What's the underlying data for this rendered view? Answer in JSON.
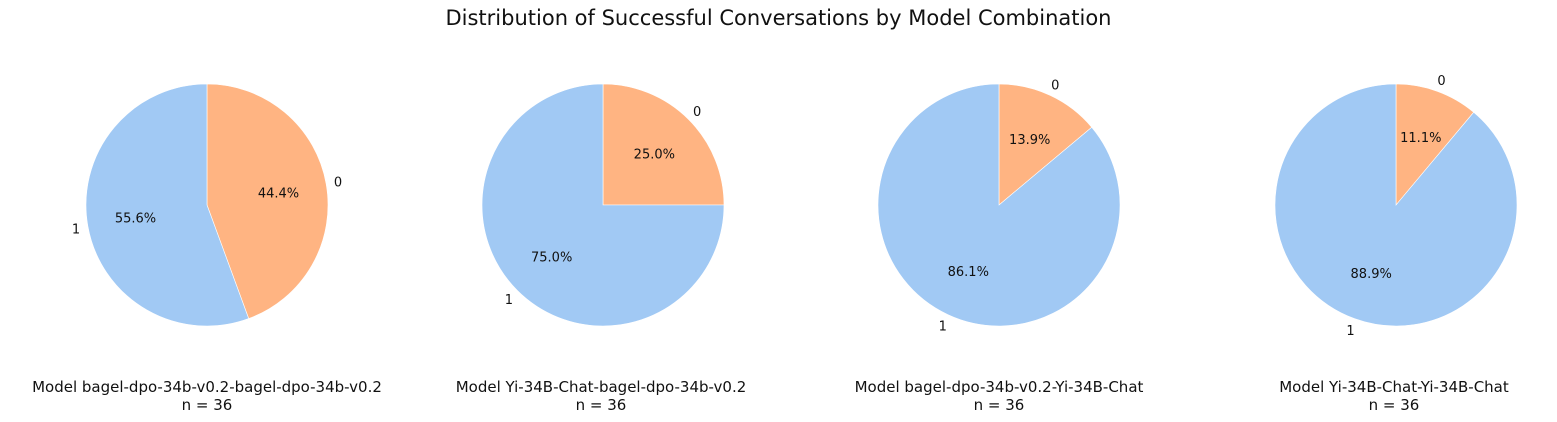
{
  "title": "Distribution of Successful Conversations by Model Combination",
  "colors": {
    "label_1": "#a1c9f4",
    "label_0": "#ffb482"
  },
  "chart_data": [
    {
      "type": "pie",
      "caption": "Model bagel-dpo-34b-v0.2-bagel-dpo-34b-v0.2",
      "n_label": "n = 36",
      "slices": [
        {
          "label": "0",
          "value": 44.4,
          "display": "44.4%"
        },
        {
          "label": "1",
          "value": 55.6,
          "display": "55.6%"
        }
      ]
    },
    {
      "type": "pie",
      "caption": "Model Yi-34B-Chat-bagel-dpo-34b-v0.2",
      "n_label": "n = 36",
      "slices": [
        {
          "label": "0",
          "value": 25.0,
          "display": "25.0%"
        },
        {
          "label": "1",
          "value": 75.0,
          "display": "75.0%"
        }
      ]
    },
    {
      "type": "pie",
      "caption": "Model bagel-dpo-34b-v0.2-Yi-34B-Chat",
      "n_label": "n = 36",
      "slices": [
        {
          "label": "0",
          "value": 13.9,
          "display": "13.9%"
        },
        {
          "label": "1",
          "value": 86.1,
          "display": "86.1%"
        }
      ]
    },
    {
      "type": "pie",
      "caption": "Model Yi-34B-Chat-Yi-34B-Chat",
      "n_label": "n = 36",
      "slices": [
        {
          "label": "0",
          "value": 11.1,
          "display": "11.1%"
        },
        {
          "label": "1",
          "value": 88.9,
          "display": "88.9%"
        }
      ]
    }
  ]
}
